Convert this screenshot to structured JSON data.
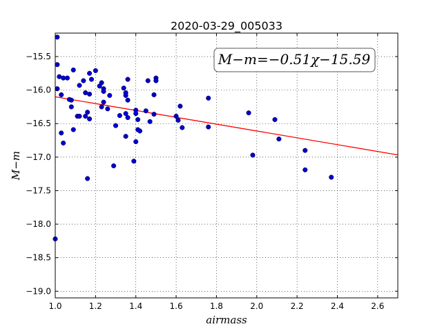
{
  "chart_data": {
    "type": "scatter",
    "title": "2020-03-29_005033",
    "xlabel": "airmass",
    "ylabel": "M−m",
    "xlim": [
      1.0,
      2.7
    ],
    "ylim": [
      -19.1,
      -15.15
    ],
    "y_inverted": true,
    "grid": true,
    "xticks": [
      "1.0",
      "1.2",
      "1.4",
      "1.6",
      "1.8",
      "2.0",
      "2.2",
      "2.4",
      "2.6"
    ],
    "yticks": [
      "−15.5",
      "−16.0",
      "−16.5",
      "−17.0",
      "−17.5",
      "−18.0",
      "−18.5",
      "−19.0"
    ],
    "annotation": "M−m=−0.51χ−15.59",
    "fit": {
      "slope": -0.51,
      "intercept": -15.59,
      "color": "#ff0000"
    },
    "point_color": "#0000cc",
    "points": [
      [
        1.0,
        -18.22
      ],
      [
        1.01,
        -15.98
      ],
      [
        1.01,
        -15.21
      ],
      [
        1.01,
        -15.62
      ],
      [
        1.02,
        -15.8
      ],
      [
        1.03,
        -16.07
      ],
      [
        1.03,
        -16.64
      ],
      [
        1.04,
        -16.79
      ],
      [
        1.04,
        -15.82
      ],
      [
        1.06,
        -15.82
      ],
      [
        1.07,
        -16.14
      ],
      [
        1.08,
        -16.25
      ],
      [
        1.08,
        -16.15
      ],
      [
        1.09,
        -16.59
      ],
      [
        1.09,
        -15.7
      ],
      [
        1.11,
        -16.39
      ],
      [
        1.12,
        -16.39
      ],
      [
        1.12,
        -15.93
      ],
      [
        1.14,
        -15.86
      ],
      [
        1.15,
        -16.04
      ],
      [
        1.15,
        -16.39
      ],
      [
        1.16,
        -16.33
      ],
      [
        1.16,
        -17.32
      ],
      [
        1.17,
        -15.75
      ],
      [
        1.17,
        -16.06
      ],
      [
        1.17,
        -16.43
      ],
      [
        1.18,
        -15.84
      ],
      [
        1.2,
        -15.71
      ],
      [
        1.22,
        -15.94
      ],
      [
        1.23,
        -15.89
      ],
      [
        1.23,
        -16.25
      ],
      [
        1.24,
        -15.98
      ],
      [
        1.24,
        -16.02
      ],
      [
        1.24,
        -16.18
      ],
      [
        1.26,
        -16.28
      ],
      [
        1.27,
        -16.08
      ],
      [
        1.29,
        -17.13
      ],
      [
        1.3,
        -16.53
      ],
      [
        1.32,
        -16.38
      ],
      [
        1.34,
        -15.97
      ],
      [
        1.35,
        -16.35
      ],
      [
        1.35,
        -16.04
      ],
      [
        1.35,
        -16.08
      ],
      [
        1.35,
        -16.69
      ],
      [
        1.36,
        -16.15
      ],
      [
        1.36,
        -16.41
      ],
      [
        1.36,
        -15.84
      ],
      [
        1.39,
        -17.06
      ],
      [
        1.4,
        -16.3
      ],
      [
        1.4,
        -16.35
      ],
      [
        1.4,
        -16.77
      ],
      [
        1.41,
        -16.44
      ],
      [
        1.41,
        -16.59
      ],
      [
        1.42,
        -16.61
      ],
      [
        1.45,
        -16.31
      ],
      [
        1.46,
        -15.86
      ],
      [
        1.47,
        -16.47
      ],
      [
        1.49,
        -16.07
      ],
      [
        1.49,
        -16.36
      ],
      [
        1.5,
        -15.82
      ],
      [
        1.5,
        -15.86
      ],
      [
        1.6,
        -16.39
      ],
      [
        1.61,
        -16.45
      ],
      [
        1.62,
        -16.24
      ],
      [
        1.63,
        -16.56
      ],
      [
        1.76,
        -16.12
      ],
      [
        1.76,
        -16.55
      ],
      [
        1.96,
        -16.34
      ],
      [
        1.98,
        -16.97
      ],
      [
        2.09,
        -16.44
      ],
      [
        2.11,
        -16.73
      ],
      [
        2.24,
        -16.9
      ],
      [
        2.24,
        -17.19
      ],
      [
        2.37,
        -17.3
      ]
    ]
  }
}
